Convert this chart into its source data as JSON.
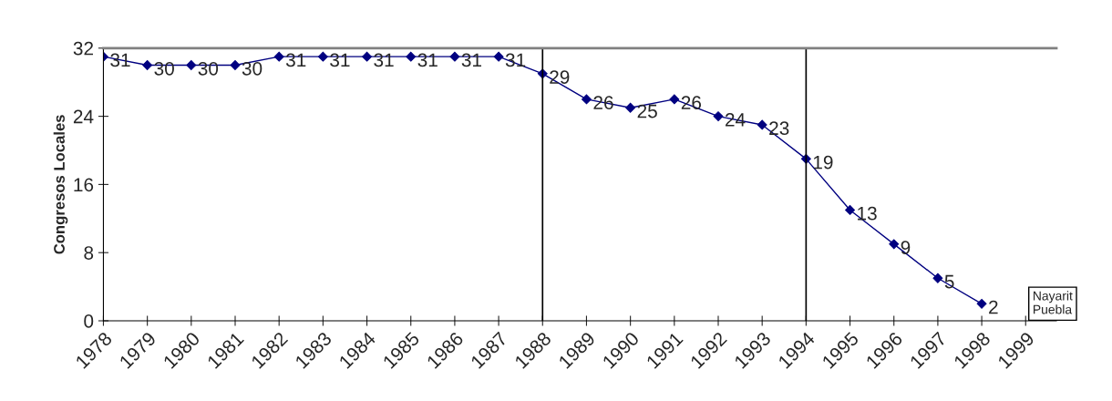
{
  "chart_data": {
    "type": "line",
    "ylabel": "Congresos Locales",
    "categories": [
      "1978",
      "1979",
      "1980",
      "1981",
      "1982",
      "1983",
      "1984",
      "1985",
      "1986",
      "1987",
      "1988",
      "1989",
      "1990",
      "1991",
      "1992",
      "1993",
      "1994",
      "1995",
      "1996",
      "1997",
      "1998",
      "1999"
    ],
    "series": [
      {
        "color": "#000080",
        "values": [
          31,
          30,
          30,
          30,
          31,
          31,
          31,
          31,
          31,
          31,
          29,
          26,
          25,
          26,
          24,
          23,
          19,
          13,
          9,
          5,
          2,
          null
        ]
      }
    ],
    "ylim": [
      0,
      32
    ],
    "yticks": [
      0,
      8,
      16,
      24,
      32
    ],
    "marker": "diamond",
    "line_style": "solid",
    "grid": false,
    "legend": false,
    "data_labels": true,
    "ref_lines": [
      {
        "axis": "x",
        "value": "1988",
        "color": "#000000"
      },
      {
        "axis": "x",
        "value": "1994",
        "color": "#000000"
      }
    ],
    "annotations": [
      "Nayarit\nPuebla"
    ]
  }
}
